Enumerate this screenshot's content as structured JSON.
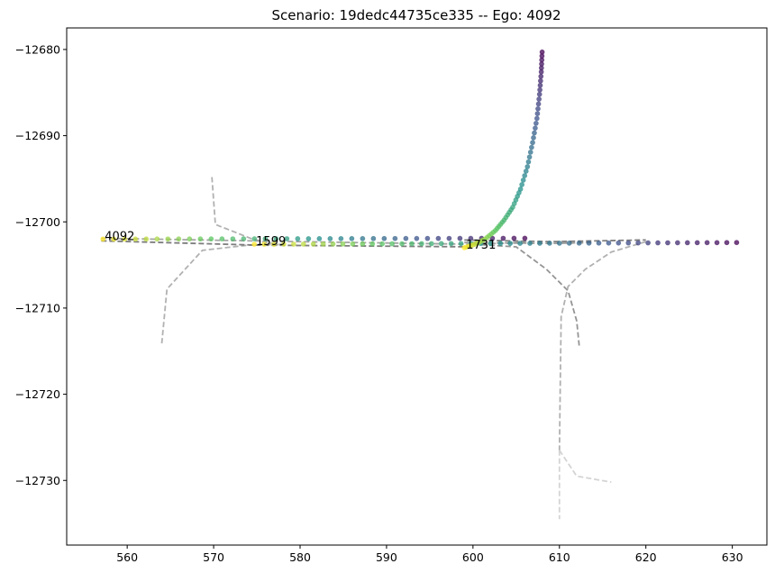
{
  "chart_data": {
    "type": "scatter",
    "title": "Scenario: 19dedc44735ce335 -- Ego: 4092",
    "xlabel": "",
    "ylabel": "",
    "xlim": [
      553,
      634
    ],
    "ylim": [
      -12737.5,
      -12677.5
    ],
    "x_ticks": [
      560,
      570,
      580,
      590,
      600,
      610,
      620,
      630
    ],
    "y_ticks": [
      -12680,
      -12690,
      -12700,
      -12710,
      -12720,
      -12730
    ],
    "grid": false,
    "colormap": "viridis",
    "agent_labels": [
      {
        "text": "4092",
        "x": 557.2,
        "y": -12702.0
      },
      {
        "text": "1599",
        "x": 574.7,
        "y": -12702.6
      },
      {
        "text": "1731",
        "x": 599.0,
        "y": -12703.0
      }
    ],
    "trajectories": [
      {
        "agent": "4092",
        "x_start": 557.2,
        "x_end": 606.0,
        "y_start": -12702.0,
        "y_end": -12701.9,
        "count": 40
      },
      {
        "agent": "1599",
        "x_start": 574.7,
        "x_end": 630.5,
        "y_start": -12702.6,
        "y_end": -12702.4,
        "count": 50
      },
      {
        "agent": "1731",
        "points": [
          [
            599.0,
            -12703.0
          ],
          [
            600.2,
            -12702.6
          ],
          [
            601.4,
            -12702.0
          ],
          [
            602.6,
            -12701.0
          ],
          [
            603.6,
            -12699.8
          ],
          [
            604.6,
            -12698.3
          ],
          [
            605.5,
            -12696.2
          ],
          [
            606.3,
            -12693.6
          ],
          [
            606.9,
            -12690.8
          ],
          [
            607.4,
            -12688.0
          ],
          [
            607.7,
            -12685.2
          ],
          [
            607.9,
            -12682.6
          ],
          [
            608.0,
            -12680.3
          ]
        ]
      }
    ],
    "lane_lines": [
      {
        "points": [
          [
            569.8,
            -12694.8
          ],
          [
            570.2,
            -12700.3
          ],
          [
            574.5,
            -12702.0
          ],
          [
            577.5,
            -12702.7
          ]
        ],
        "color": "#a8a8a8"
      },
      {
        "points": [
          [
            564.0,
            -12714.1
          ],
          [
            564.6,
            -12707.8
          ],
          [
            568.7,
            -12703.3
          ],
          [
            574.0,
            -12702.7
          ],
          [
            578.0,
            -12702.6
          ]
        ],
        "color": "#a8a8a8"
      },
      {
        "points": [
          [
            557.0,
            -12701.9
          ],
          [
            580.0,
            -12702.3
          ],
          [
            600.0,
            -12702.6
          ],
          [
            606.0,
            -12702.4
          ]
        ],
        "color": "#9a9a9a"
      },
      {
        "points": [
          [
            557.0,
            -12702.2
          ],
          [
            575.0,
            -12702.7
          ],
          [
            600.0,
            -12702.9
          ]
        ],
        "color": "#707070"
      },
      {
        "points": [
          [
            599.0,
            -12702.1
          ],
          [
            609.0,
            -12702.3
          ],
          [
            620.0,
            -12702.1
          ]
        ],
        "color": "#707070"
      },
      {
        "points": [
          [
            599.0,
            -12702.4
          ],
          [
            609.0,
            -12702.5
          ],
          [
            614.0,
            -12702.4
          ]
        ],
        "color": "#909090"
      },
      {
        "points": [
          [
            600.0,
            -12702.6
          ],
          [
            605.0,
            -12702.9
          ],
          [
            608.5,
            -12705.5
          ],
          [
            611.0,
            -12708.0
          ],
          [
            612.0,
            -12711.5
          ],
          [
            612.3,
            -12714.5
          ]
        ],
        "color": "#8a8a8a"
      },
      {
        "points": [
          [
            620.0,
            -12702.3
          ],
          [
            616.0,
            -12703.5
          ],
          [
            613.0,
            -12705.5
          ],
          [
            611.0,
            -12707.5
          ],
          [
            610.2,
            -12711.0
          ],
          [
            610.0,
            -12726.5
          ]
        ],
        "color": "#a8a8a8"
      },
      {
        "points": [
          [
            610.0,
            -12726.5
          ],
          [
            612.0,
            -12729.5
          ],
          [
            616.0,
            -12730.2
          ]
        ],
        "color": "#cfcfcf"
      },
      {
        "points": [
          [
            610.0,
            -12726.5
          ],
          [
            610.0,
            -12734.5
          ]
        ],
        "color": "#cfcfcf"
      }
    ]
  }
}
